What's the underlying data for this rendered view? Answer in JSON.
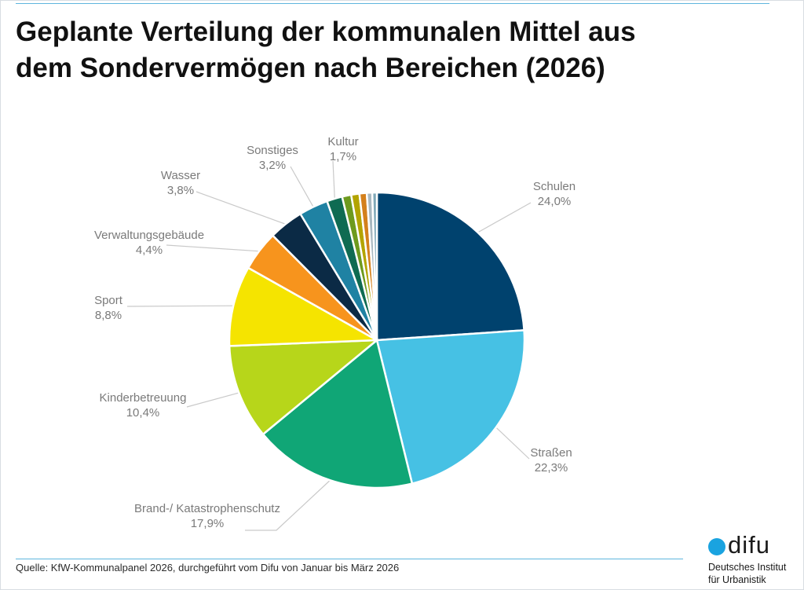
{
  "title_lines": [
    "Geplante Verteilung der kommunalen Mittel aus",
    "dem Sondervermögen nach Bereichen (2026)"
  ],
  "source": "Quelle: KfW-Kommunalpanel 2026, durchgeführt vom Difu von Januar bis März 2026",
  "logo": {
    "wordmark": "difu",
    "line1": "Deutsches Institut",
    "line2": "für Urbanistik",
    "dot_color": "#1aa3e0"
  },
  "chart_data": {
    "type": "pie",
    "title": "Geplante Verteilung der kommunalen Mittel aus dem Sondervermögen nach Bereichen (2026)",
    "start": "12 o'clock",
    "direction": "clockwise",
    "slices": [
      {
        "label": "Schulen",
        "value": 24.0,
        "value_label": "24,0%",
        "color": "#00426e"
      },
      {
        "label": "Straßen",
        "value": 22.3,
        "value_label": "22,3%",
        "color": "#46c1e4"
      },
      {
        "label": "Brand-/ Katastrophenschutz",
        "value": 17.9,
        "value_label": "17,9%",
        "color": "#10a676"
      },
      {
        "label": "Kinderbetreuung",
        "value": 10.4,
        "value_label": "10,4%",
        "color": "#b7d61a"
      },
      {
        "label": "Sport",
        "value": 8.8,
        "value_label": "8,8%",
        "color": "#f5e400"
      },
      {
        "label": "Verwaltungsgebäude",
        "value": 4.4,
        "value_label": "4,4%",
        "color": "#f7941d"
      },
      {
        "label": "Wasser",
        "value": 3.8,
        "value_label": "3,8%",
        "color": "#0b2a45"
      },
      {
        "label": "Sonstiges",
        "value": 3.2,
        "value_label": "3,2%",
        "color": "#1f82a3"
      },
      {
        "label": "Kultur",
        "value": 1.7,
        "value_label": "1,7%",
        "color": "#0f6b52"
      },
      {
        "label": "",
        "value": 1.0,
        "value_label": "",
        "color": "#6e9a1e"
      },
      {
        "label": "",
        "value": 0.9,
        "value_label": "",
        "color": "#b3a400"
      },
      {
        "label": "",
        "value": 0.8,
        "value_label": "",
        "color": "#d4801c"
      },
      {
        "label": "",
        "value": 0.6,
        "value_label": "",
        "color": "#a8b8c0"
      },
      {
        "label": "",
        "value": 0.5,
        "value_label": "",
        "color": "#7fa8b8"
      }
    ]
  }
}
